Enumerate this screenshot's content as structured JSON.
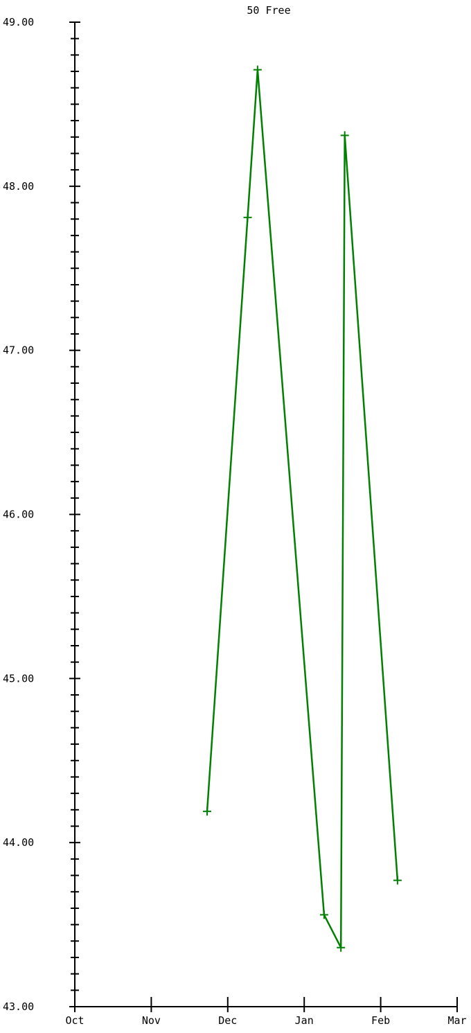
{
  "chart_data": {
    "type": "line",
    "title": "50 Free",
    "xlabel": "",
    "ylabel": "",
    "x_ticks": [
      "Oct",
      "Nov",
      "Dec",
      "Jan",
      "Feb",
      "Mar"
    ],
    "y_ticks": [
      "43.00",
      "44.00",
      "45.00",
      "46.00",
      "47.00",
      "48.00",
      "49.00"
    ],
    "ylim": [
      43.0,
      49.0
    ],
    "xlim": [
      "Oct",
      "Mar"
    ],
    "minor_y_step": 0.1,
    "grid": false,
    "line_color": "#008000",
    "axis_color": "#000000",
    "series": [
      {
        "x": [
          "Nov 23",
          "Dec 9",
          "Dec 13",
          "Jan 8",
          "Jan 14",
          "Jan 15",
          "Feb 4"
        ],
        "x_months": [
          1.73,
          2.26,
          2.39,
          3.26,
          3.48,
          3.53,
          4.22
        ],
        "values": [
          44.19,
          47.81,
          48.71,
          43.56,
          43.36,
          48.31,
          43.77
        ]
      }
    ]
  }
}
